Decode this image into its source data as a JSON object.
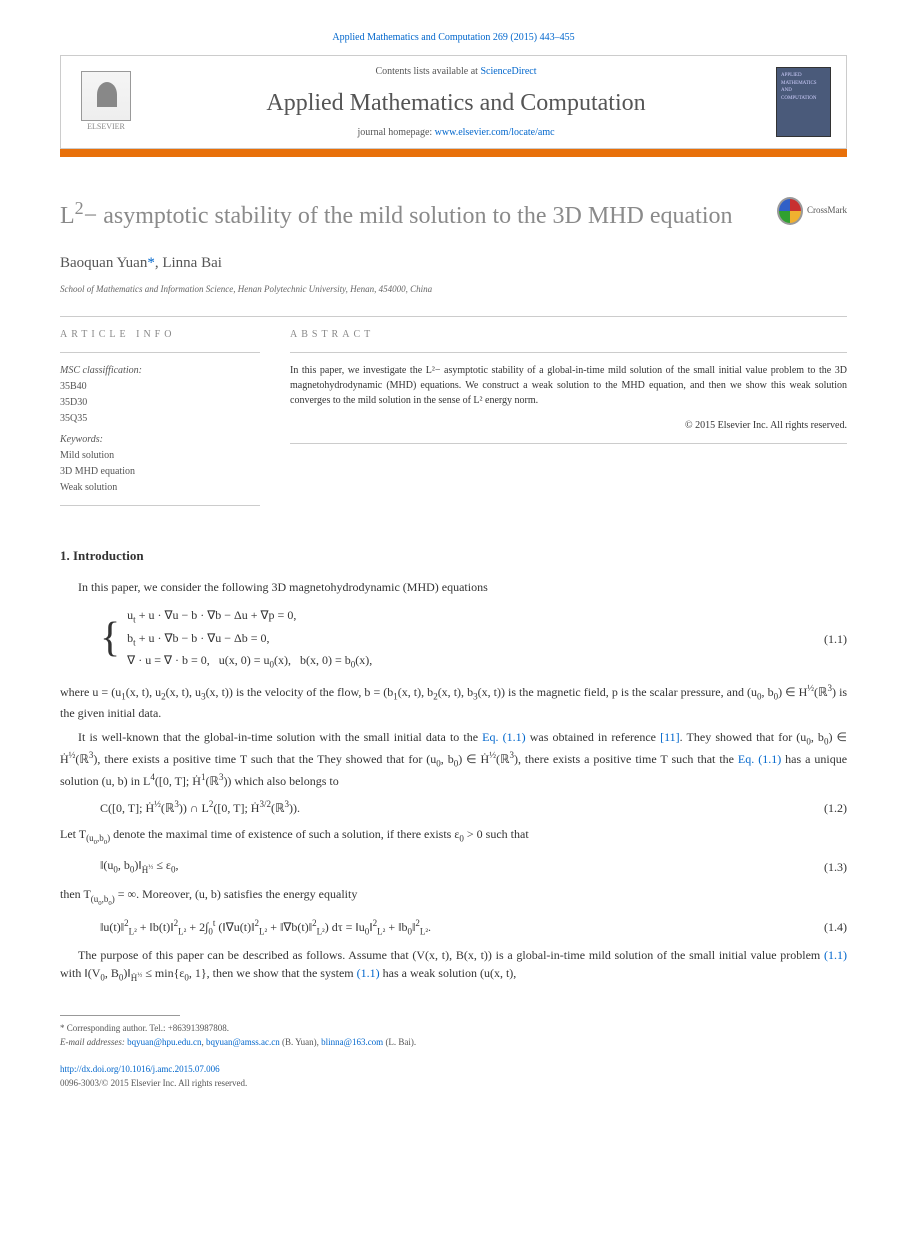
{
  "header": {
    "citation": "Applied Mathematics and Computation 269 (2015) 443–455",
    "contents_prefix": "Contents lists available at ",
    "sciencedirect": "ScienceDirect",
    "journal_name": "Applied Mathematics and Computation",
    "homepage_prefix": "journal homepage: ",
    "homepage_url": "www.elsevier.com/locate/amc",
    "elsevier": "ELSEVIER",
    "cover_text": "APPLIED MATHEMATICS AND COMPUTATION"
  },
  "title": {
    "html": "L<sup>2</sup>− asymptotic stability of the mild solution to the 3D MHD equation"
  },
  "crossmark": "CrossMark",
  "authors": {
    "names": "Baoquan Yuan*, Linna Bai",
    "affiliation": "School of Mathematics and Information Science, Henan Polytechnic University, Henan, 454000, China"
  },
  "article_info": {
    "heading": "ARTICLE INFO",
    "msc_label": "MSC classiffication:",
    "msc": [
      "35B40",
      "35D30",
      "35Q35"
    ],
    "keywords_label": "Keywords:",
    "keywords": [
      "Mild solution",
      "3D MHD equation",
      "Weak solution"
    ]
  },
  "abstract": {
    "heading": "ABSTRACT",
    "text": "In this paper, we investigate the L²− asymptotic stability of a global-in-time mild solution of the small initial value problem to the 3D magnetohydrodynamic (MHD) equations. We construct a weak solution to the MHD equation, and then we show this weak solution converges to the mild solution in the sense of L² energy norm.",
    "copyright": "© 2015 Elsevier Inc. All rights reserved."
  },
  "section1": {
    "heading": "1. Introduction",
    "p1": "In this paper, we consider the following 3D magnetohydrodynamic (MHD) equations",
    "eq11": {
      "line1": "u<sub>t</sub> + u · ∇u − b · ∇b − Δu + ∇p = 0,",
      "line2": "b<sub>t</sub> + u · ∇b − b · ∇u − Δb = 0,",
      "line3": "∇ · u = ∇ · b = 0,&nbsp;&nbsp;&nbsp;u(x, 0) = u<sub>0</sub>(x),&nbsp;&nbsp;&nbsp;b(x, 0) = b<sub>0</sub>(x),",
      "num": "(1.1)"
    },
    "p2": "where u = (u<sub>1</sub>(x, t), u<sub>2</sub>(x, t), u<sub>3</sub>(x, t)) is the velocity of the flow, b = (b<sub>1</sub>(x, t), b<sub>2</sub>(x, t), b<sub>3</sub>(x, t)) is the magnetic field, p is the scalar pressure, and (u<sub>0</sub>, b<sub>0</sub>) ∈ H<sup>½</sup>(ℝ<sup>3</sup>) is the given initial data.",
    "p3_a": "It is well-known that the global-in-time solution with the small initial data to the ",
    "p3_link1": "Eq. (1.1)",
    "p3_b": " was obtained in reference ",
    "p3_link2": "[11]",
    "p3_c": ". They showed that for (u<sub>0</sub>, b<sub>0</sub>) ∈ Ḣ<sup>½</sup>(ℝ<sup>3</sup>), there exists a positive time T such that the ",
    "p3_link3": "Eq. (1.1)",
    "p3_d": " has a unique solution (u, b) in L<sup>4</sup>([0, T]; Ḣ<sup>1</sup>(ℝ<sup>3</sup>)) which also belongs to",
    "eq12": {
      "body": "C([0, T]; Ḣ<sup>½</sup>(ℝ<sup>3</sup>)) ∩ L<sup>2</sup>([0, T]; Ḣ<sup>3/2</sup>(ℝ<sup>3</sup>)).",
      "num": "(1.2)"
    },
    "p4": "Let T<sub>(u<sub>0</sub>,b<sub>0</sub>)</sub> denote the maximal time of existence of such a solution, if there exists ε<sub>0</sub> > 0 such that",
    "eq13": {
      "body": "‖(u<sub>0</sub>, b<sub>0</sub>)‖<sub>Ḣ<sup>½</sup></sub> ≤ ε<sub>0</sub>,",
      "num": "(1.3)"
    },
    "p5": "then T<sub>(u<sub>0</sub>,b<sub>0</sub>)</sub> = ∞. Moreover, (u, b) satisfies the energy equality",
    "eq14": {
      "body": "‖u(t)‖<sup>2</sup><sub>L²</sub> + ‖b(t)‖<sup>2</sup><sub>L²</sub> + 2∫<sub>0</sub><sup>t</sup> (‖∇u(t)‖<sup>2</sup><sub>L²</sub> + ‖∇b(t)‖<sup>2</sup><sub>L²</sub>) dτ = ‖u<sub>0</sub>‖<sup>2</sup><sub>L²</sub> + ‖b<sub>0</sub>‖<sup>2</sup><sub>L²</sub>.",
      "num": "(1.4)"
    },
    "p6_a": "The purpose of this paper can be described as follows. Assume that (V(x, t), B(x, t)) is a global-in-time mild solution of the small initial value problem ",
    "p6_link1": "(1.1)",
    "p6_b": " with ‖(V<sub>0</sub>, B<sub>0</sub>)‖<sub>Ḣ<sup>½</sup></sub> ≤ min{ε<sub>0</sub>, 1}, then we show that the system ",
    "p6_link2": "(1.1)",
    "p6_c": " has a weak solution (u(x, t),"
  },
  "footnotes": {
    "corr": "* Corresponding author. Tel.: +863913987808.",
    "email_label": "E-mail addresses: ",
    "email1": "bqyuan@hpu.edu.cn",
    "email2": "bqyuan@amss.ac.cn",
    "email1_name": " (B. Yuan), ",
    "email3": "blinna@163.com",
    "email3_name": " (L. Bai)."
  },
  "footer": {
    "doi": "http://dx.doi.org/10.1016/j.amc.2015.07.006",
    "issn": "0096-3003/© 2015 Elsevier Inc. All rights reserved."
  },
  "colors": {
    "link": "#0066cc",
    "orange": "#e8700a",
    "title_gray": "#8a8a8a",
    "body": "#333333"
  }
}
